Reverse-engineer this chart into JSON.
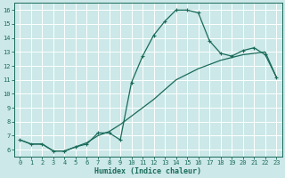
{
  "xlabel": "Humidex (Indice chaleur)",
  "bg_color": "#cce8e8",
  "grid_color": "#ffffff",
  "line_color": "#1a6b5a",
  "x_min": -0.5,
  "x_max": 23.5,
  "y_min": 5.5,
  "y_max": 16.5,
  "yticks": [
    6,
    7,
    8,
    9,
    10,
    11,
    12,
    13,
    14,
    15,
    16
  ],
  "xticks": [
    0,
    1,
    2,
    3,
    4,
    5,
    6,
    7,
    8,
    9,
    10,
    11,
    12,
    13,
    14,
    15,
    16,
    17,
    18,
    19,
    20,
    21,
    22,
    23
  ],
  "line1_x": [
    0,
    1,
    2,
    3,
    4,
    5,
    6,
    7,
    8,
    9,
    10,
    11,
    12,
    13,
    14,
    15,
    16,
    17,
    18,
    19,
    20,
    21,
    22,
    23
  ],
  "line1_y": [
    6.7,
    6.4,
    6.4,
    5.9,
    5.9,
    6.2,
    6.4,
    7.2,
    7.2,
    6.7,
    10.8,
    12.7,
    14.2,
    15.2,
    16.0,
    16.0,
    15.8,
    13.8,
    12.9,
    12.7,
    13.1,
    13.3,
    12.8,
    11.2
  ],
  "line2_x": [
    0,
    1,
    2,
    3,
    4,
    5,
    6,
    7,
    8,
    9,
    10,
    11,
    12,
    13,
    14,
    15,
    16,
    17,
    18,
    19,
    20,
    21,
    22,
    23
  ],
  "line2_y": [
    6.7,
    6.4,
    6.4,
    5.9,
    5.9,
    6.2,
    6.5,
    7.0,
    7.3,
    7.8,
    8.4,
    9.0,
    9.6,
    10.3,
    11.0,
    11.4,
    11.8,
    12.1,
    12.4,
    12.6,
    12.8,
    12.9,
    13.0,
    11.2
  ],
  "tick_fontsize": 5.0,
  "xlabel_fontsize": 6.0,
  "tick_color": "#1a6b5a",
  "spine_color": "#1a6b5a"
}
